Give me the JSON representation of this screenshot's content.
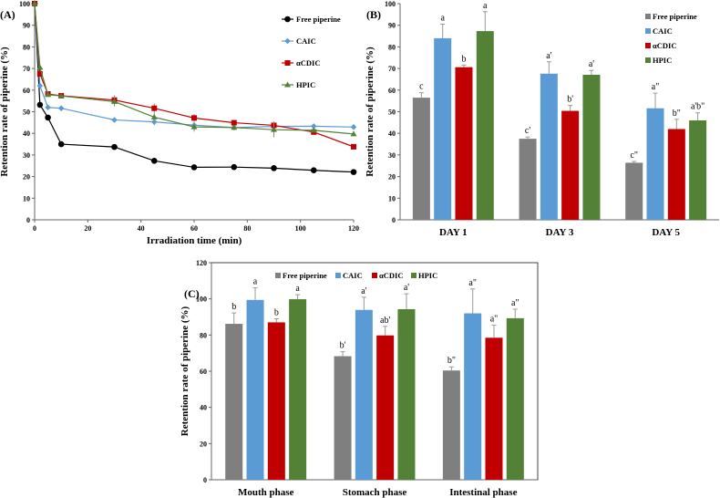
{
  "series_colors": {
    "Free piperine": "#000000",
    "CAIC": "#5b9bd5",
    "αCDIC": "#c00000",
    "HPIC": "#538135"
  },
  "bar_colors": [
    "#7f7f7f",
    "#5b9bd5",
    "#c00000",
    "#538135"
  ],
  "chart_data": [
    {
      "type": "line",
      "panel": "(A)",
      "xlabel": "Irradiation time (min)",
      "ylabel": "Retention rate of piperine  (%)",
      "xlim": [
        0,
        120
      ],
      "ylim": [
        0,
        100
      ],
      "xticks": [
        0,
        20,
        40,
        60,
        80,
        100,
        120
      ],
      "yticks": [
        0,
        10,
        20,
        30,
        40,
        50,
        60,
        70,
        80,
        90,
        100
      ],
      "legend": "top-right",
      "x": [
        0,
        2,
        5,
        10,
        30,
        45,
        60,
        75,
        90,
        105,
        120
      ],
      "series": [
        {
          "name": "Free piperine",
          "marker": "circle",
          "values": [
            100,
            53.2,
            47.3,
            35,
            33.7,
            27.3,
            24.3,
            24.4,
            23.9,
            22.9,
            22.1
          ],
          "errors": [
            0,
            0.5,
            0.5,
            0.5,
            0.6,
            0.5,
            0.5,
            0.5,
            0.5,
            0.5,
            0.5
          ]
        },
        {
          "name": "CAIC",
          "marker": "diamond",
          "values": [
            100,
            62,
            52,
            51.6,
            46.2,
            45.3,
            43.8,
            42.7,
            43.2,
            43.3,
            42.9
          ],
          "errors": [
            0,
            1,
            1,
            1.2,
            0.8,
            1.5,
            1,
            0.8,
            1,
            0.7,
            0.6
          ]
        },
        {
          "name": "αCDIC",
          "marker": "square",
          "values": [
            100,
            67.5,
            58.2,
            57.4,
            55.4,
            51.6,
            47.1,
            44.9,
            43.7,
            40.6,
            33.8
          ],
          "errors": [
            0,
            1,
            0.8,
            0.8,
            2.2,
            2.2,
            1.8,
            1,
            1.8,
            0.8,
            0.8
          ]
        },
        {
          "name": "HPIC",
          "marker": "triangle",
          "values": [
            100,
            70.5,
            57.9,
            57.3,
            54.7,
            47.5,
            43,
            42.7,
            41.7,
            41.4,
            39.7
          ],
          "errors": [
            0,
            1,
            0.8,
            0.8,
            2.2,
            2,
            2.2,
            1,
            3.5,
            0.8,
            0.8
          ]
        }
      ]
    },
    {
      "type": "bar",
      "panel": "(B)",
      "xlabel": "",
      "ylabel": "Retention rate of piperine (%)",
      "ylim": [
        0,
        100
      ],
      "yticks": [
        0,
        10,
        20,
        30,
        40,
        50,
        60,
        70,
        80,
        90,
        100
      ],
      "legend": "top-right",
      "categories": [
        "DAY 1",
        "DAY 3",
        "DAY 5"
      ],
      "series": [
        {
          "name": "Free piperine",
          "values": [
            56.5,
            37.5,
            26.4
          ],
          "errors": [
            2.3,
            0.8,
            0.6
          ],
          "labels": [
            "c",
            "c'",
            "c\""
          ]
        },
        {
          "name": "CAIC",
          "values": [
            84,
            67.6,
            51.6
          ],
          "errors": [
            6.5,
            5.5,
            7
          ],
          "labels": [
            "a",
            "a'",
            "a\""
          ]
        },
        {
          "name": "αCDIC",
          "values": [
            70.6,
            50.4,
            42
          ],
          "errors": [
            1,
            2.5,
            4.5
          ],
          "labels": [
            "b",
            "b'",
            "b\""
          ]
        },
        {
          "name": "HPIC",
          "values": [
            87.3,
            67.1,
            46
          ],
          "errors": [
            9,
            2,
            3.5
          ],
          "labels": [
            "a",
            "a'",
            "a'b\""
          ]
        }
      ]
    },
    {
      "type": "bar",
      "panel": "(C)",
      "xlabel": "",
      "ylabel": "Retention rate of piperine (%)",
      "ylim": [
        0,
        120
      ],
      "yticks": [
        0,
        20,
        40,
        60,
        80,
        100,
        120
      ],
      "legend": "top",
      "categories": [
        "Mouth phase",
        "Stomach phase",
        "Intestinal phase"
      ],
      "series": [
        {
          "name": "Free piperine",
          "values": [
            86.2,
            68.3,
            60.4
          ],
          "errors": [
            6,
            2.5,
            2
          ],
          "labels": [
            "b",
            "b'",
            "b\""
          ]
        },
        {
          "name": "CAIC",
          "values": [
            99.4,
            93.9,
            92
          ],
          "errors": [
            6.7,
            7,
            13.5
          ],
          "labels": [
            "a",
            "a'",
            "a\""
          ]
        },
        {
          "name": "αCDIC",
          "values": [
            87,
            79.8,
            78.5
          ],
          "errors": [
            2,
            5,
            7
          ],
          "labels": [
            "b",
            "ab'",
            "a\""
          ]
        },
        {
          "name": "HPIC",
          "values": [
            99.8,
            94.3,
            89.3
          ],
          "errors": [
            2.5,
            8.5,
            5
          ],
          "labels": [
            "a",
            "a'",
            "a\""
          ]
        }
      ]
    }
  ]
}
